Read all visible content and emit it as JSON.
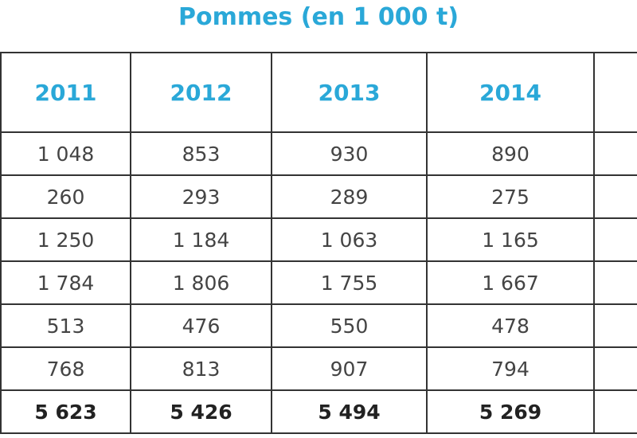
{
  "title": "Pommes (en 1 000 t)",
  "table": {
    "header": [
      "2011",
      "2012",
      "2013",
      "2014"
    ],
    "rows": [
      [
        "1 048",
        "853",
        "930",
        "890"
      ],
      [
        "260",
        "293",
        "289",
        "275"
      ],
      [
        "1 250",
        "1 184",
        "1 063",
        "1 165"
      ],
      [
        "1 784",
        "1 806",
        "1 755",
        "1 667"
      ],
      [
        "513",
        "476",
        "550",
        "478"
      ],
      [
        "768",
        "813",
        "907",
        "794"
      ],
      [
        "5 623",
        "5 426",
        "5 494",
        "5 269"
      ]
    ]
  }
}
